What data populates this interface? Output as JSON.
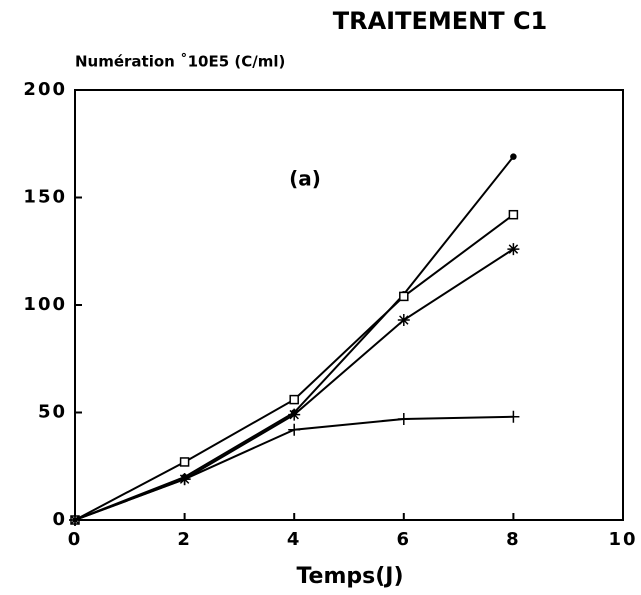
{
  "chart_data": {
    "type": "line",
    "title": "TRAITEMENT C1",
    "ylabel": "Numération ˚10E5 (C/ml)",
    "xlabel": "Temps(J)",
    "annotation": "(a)",
    "x": [
      0,
      2,
      4,
      6,
      8
    ],
    "series": [
      {
        "color": "#000000",
        "marker": "dot",
        "values": [
          0,
          20,
          50,
          105,
          169
        ]
      },
      {
        "color": "#000000",
        "marker": "square",
        "values": [
          0,
          27,
          56,
          104,
          142
        ]
      },
      {
        "color": "#000000",
        "marker": "star",
        "values": [
          0,
          19,
          49,
          93,
          126
        ]
      },
      {
        "color": "#000000",
        "marker": "plus",
        "values": [
          0,
          19,
          42,
          47,
          48
        ]
      }
    ],
    "xlim": [
      0,
      10
    ],
    "xticks": [
      0,
      2,
      4,
      6,
      8,
      10
    ],
    "ylim": [
      0,
      200
    ],
    "yticks": [
      0,
      50,
      100,
      150,
      200
    ],
    "grid": false
  }
}
